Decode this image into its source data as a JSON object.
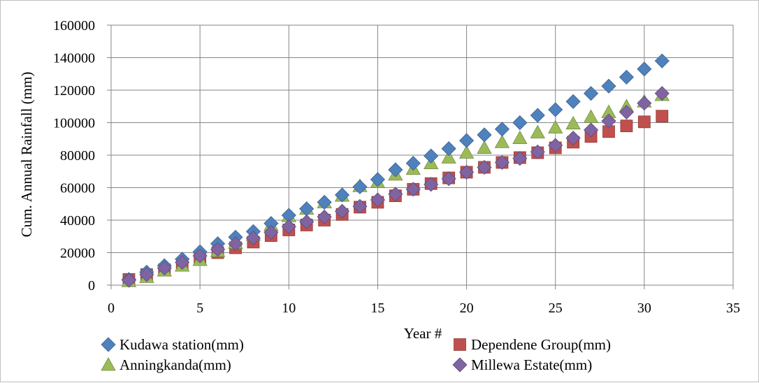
{
  "chart_data": {
    "type": "scatter",
    "xlabel": "Year #",
    "ylabel": "Cum. Annual Rainfall (mm)",
    "xlim": [
      0,
      35
    ],
    "ylim": [
      0,
      160000
    ],
    "xticks": [
      0,
      5,
      10,
      15,
      20,
      25,
      30,
      35
    ],
    "yticks": [
      0,
      20000,
      40000,
      60000,
      80000,
      100000,
      120000,
      140000,
      160000
    ],
    "x_tick_labels": [
      "0",
      "5",
      "10",
      "15",
      "20",
      "25",
      "30",
      "35"
    ],
    "y_tick_labels": [
      "0",
      "20000",
      "40000",
      "60000",
      "80000",
      "100000",
      "120000",
      "140000",
      "160000"
    ],
    "grid": true,
    "legend_position": "bottom",
    "x": [
      1,
      2,
      3,
      4,
      5,
      6,
      7,
      8,
      9,
      10,
      11,
      12,
      13,
      14,
      15,
      16,
      17,
      18,
      19,
      20,
      21,
      22,
      23,
      24,
      25,
      26,
      27,
      28,
      29,
      30,
      31
    ],
    "series": [
      {
        "name": "Kudawa station(mm)",
        "marker": "diamond",
        "color": "#4f81bd",
        "values": [
          3500,
          8000,
          12000,
          16000,
          20500,
          25500,
          29500,
          33000,
          38000,
          43000,
          47000,
          51000,
          55500,
          60500,
          65000,
          71000,
          75000,
          79500,
          84000,
          89000,
          92500,
          96000,
          100000,
          104500,
          108000,
          113000,
          118000,
          122500,
          128000,
          133000,
          138000
        ]
      },
      {
        "name": "Dependene Group(mm)",
        "marker": "square",
        "color": "#c0504d",
        "values": [
          3500,
          6500,
          9500,
          13000,
          17000,
          20000,
          23000,
          26500,
          30500,
          34000,
          37000,
          40000,
          43500,
          48000,
          51000,
          55000,
          59000,
          62500,
          66000,
          69500,
          72500,
          75500,
          78500,
          81500,
          84500,
          88000,
          91500,
          94500,
          98000,
          100500,
          104000
        ]
      },
      {
        "name": "Anningkanda(mm)",
        "marker": "triangle",
        "color": "#9bbb59",
        "values": [
          2500,
          5000,
          9000,
          12000,
          15500,
          21000,
          26000,
          31000,
          37000,
          42500,
          47000,
          51000,
          55000,
          61000,
          63500,
          68000,
          71500,
          75000,
          78500,
          81500,
          84500,
          88000,
          90500,
          94000,
          97000,
          99500,
          103500,
          106500,
          110000,
          113000,
          117000
        ]
      },
      {
        "name": "Millewa Estate(mm)",
        "marker": "diamond",
        "color": "#8064a2",
        "values": [
          3000,
          6500,
          10500,
          14000,
          18000,
          22000,
          25500,
          29000,
          32500,
          36000,
          39000,
          42000,
          45500,
          48500,
          52500,
          56000,
          59000,
          62000,
          65500,
          69500,
          72500,
          75500,
          78000,
          82000,
          86000,
          90500,
          95500,
          101000,
          106500,
          112000,
          118000
        ]
      }
    ]
  }
}
